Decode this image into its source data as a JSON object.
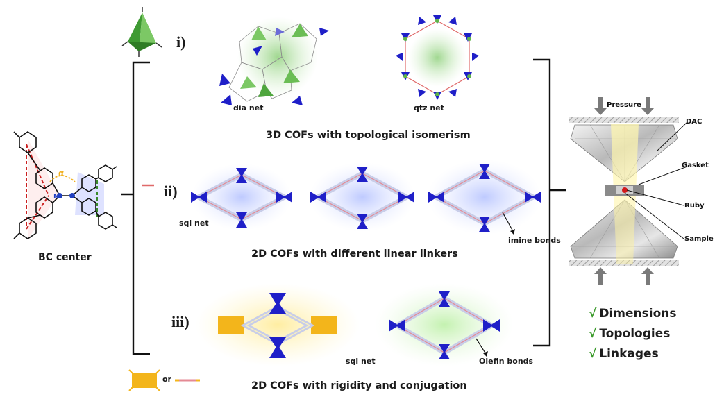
{
  "roman_labels": {
    "i": "i)",
    "ii": "ii)",
    "iii": "iii)"
  },
  "center": {
    "label": "BC center",
    "angle_symbol": "α",
    "n_label": "N"
  },
  "section1": {
    "left_net": "dia net",
    "right_net": "qtz net",
    "caption": "3D COFs with topological isomerism"
  },
  "section2": {
    "net": "sql net",
    "bond": "imine bonds",
    "caption": "2D COFs  with different linear linkers"
  },
  "section3": {
    "net": "sql net",
    "bond": "Olefin bonds",
    "caption": "2D COFs with rigidity and conjugation"
  },
  "legend": {
    "or": "or"
  },
  "dac": {
    "pressure": "Pressure",
    "dac": "DAC",
    "gasket": "Gasket",
    "ruby": "Ruby",
    "sample": "Sample"
  },
  "checklist": [
    "Dimensions",
    "Topologies",
    "Linkages"
  ],
  "colors": {
    "tetra_green": "#5fb34a",
    "triangle_blue": "#1f1fc8",
    "linker_yellow": "#f3b51b",
    "imine_pink": "#e88e98",
    "check_green": "#3a9a2a",
    "ruby_red": "#d21a1a"
  }
}
